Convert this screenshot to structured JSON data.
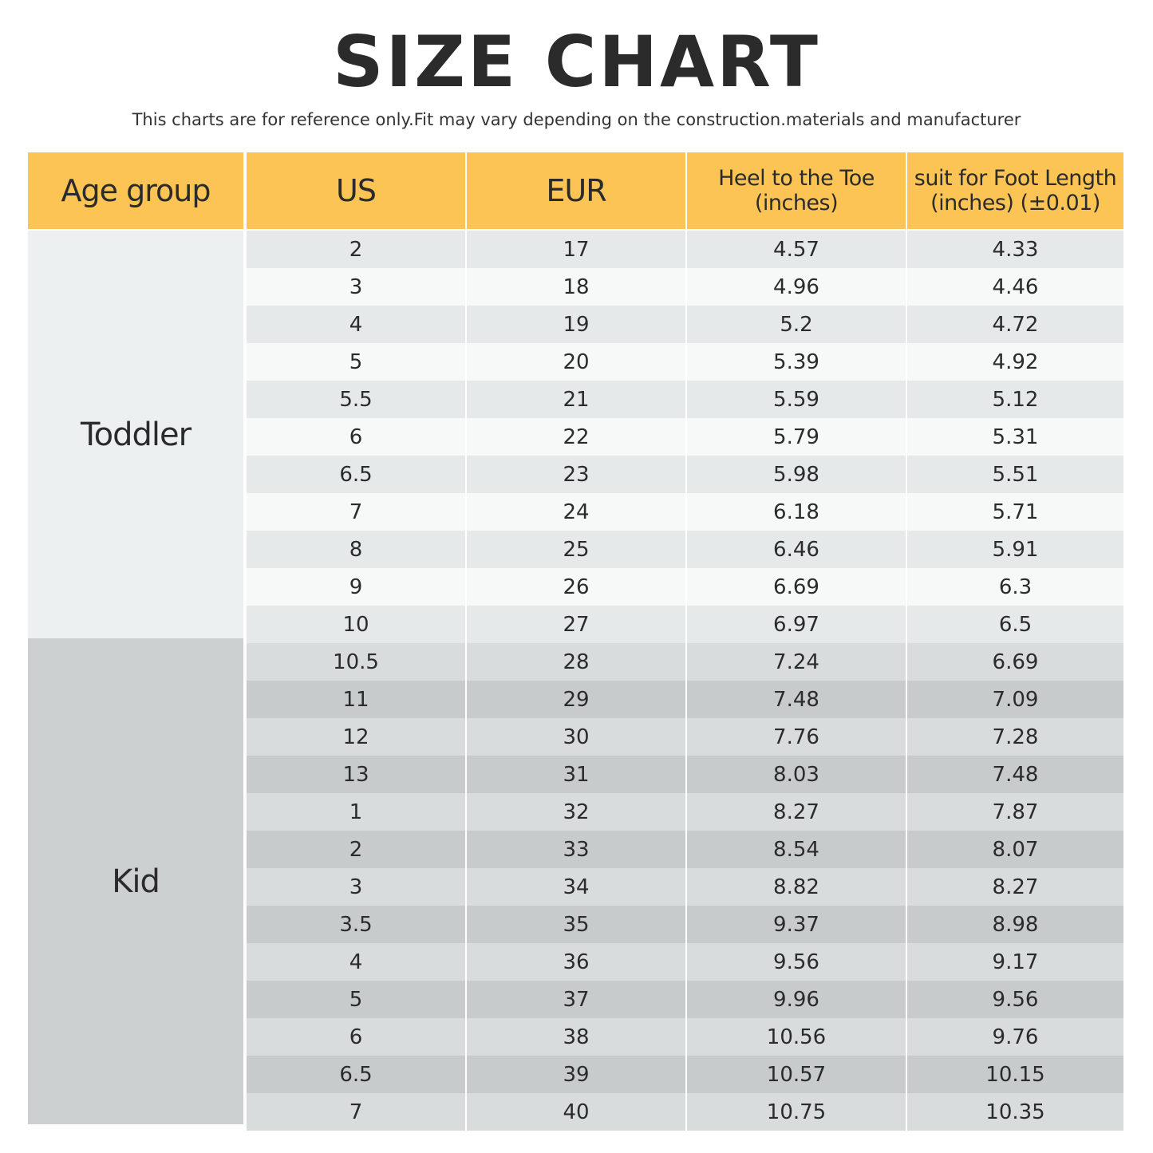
{
  "title": "SIZE CHART",
  "subtitle": "This charts are for reference only.Fit may vary depending on the construction.materials and manufacturer",
  "headers": {
    "age_group": "Age group",
    "us": "US",
    "eur": "EUR",
    "heel_line1": "Heel to the Toe",
    "heel_line2": "(inches)",
    "foot_line1": "suit for Foot Length",
    "foot_line2": "(inches) (±0.01)"
  },
  "groups": {
    "toddler": "Toddler",
    "kid": "Kid"
  },
  "colors": {
    "header": "#fcc455",
    "toddler_band": "#edf0f0",
    "kid_band": "#ccd0d1",
    "toddler_row_light": "#f7f8f8",
    "toddler_row_dark": "#e6e9e9",
    "kid_row_light": "#d9dcdd",
    "kid_row_dark": "#c7cbcc"
  },
  "rows": [
    {
      "group": "Toddler",
      "us": "2",
      "eur": "17",
      "heel": "4.57",
      "foot": "4.33"
    },
    {
      "group": "Toddler",
      "us": "3",
      "eur": "18",
      "heel": "4.96",
      "foot": "4.46"
    },
    {
      "group": "Toddler",
      "us": "4",
      "eur": "19",
      "heel": "5.2",
      "foot": "4.72"
    },
    {
      "group": "Toddler",
      "us": "5",
      "eur": "20",
      "heel": "5.39",
      "foot": "4.92"
    },
    {
      "group": "Toddler",
      "us": "5.5",
      "eur": "21",
      "heel": "5.59",
      "foot": "5.12"
    },
    {
      "group": "Toddler",
      "us": "6",
      "eur": "22",
      "heel": "5.79",
      "foot": "5.31"
    },
    {
      "group": "Toddler",
      "us": "6.5",
      "eur": "23",
      "heel": "5.98",
      "foot": "5.51"
    },
    {
      "group": "Toddler",
      "us": "7",
      "eur": "24",
      "heel": "6.18",
      "foot": "5.71"
    },
    {
      "group": "Toddler",
      "us": "8",
      "eur": "25",
      "heel": "6.46",
      "foot": "5.91"
    },
    {
      "group": "Toddler",
      "us": "9",
      "eur": "26",
      "heel": "6.69",
      "foot": "6.3"
    },
    {
      "group": "Toddler",
      "us": "10",
      "eur": "27",
      "heel": "6.97",
      "foot": "6.5"
    },
    {
      "group": "Kid",
      "us": "10.5",
      "eur": "28",
      "heel": "7.24",
      "foot": "6.69"
    },
    {
      "group": "Kid",
      "us": "11",
      "eur": "29",
      "heel": "7.48",
      "foot": "7.09"
    },
    {
      "group": "Kid",
      "us": "12",
      "eur": "30",
      "heel": "7.76",
      "foot": "7.28"
    },
    {
      "group": "Kid",
      "us": "13",
      "eur": "31",
      "heel": "8.03",
      "foot": "7.48"
    },
    {
      "group": "Kid",
      "us": "1",
      "eur": "32",
      "heel": "8.27",
      "foot": "7.87"
    },
    {
      "group": "Kid",
      "us": "2",
      "eur": "33",
      "heel": "8.54",
      "foot": "8.07"
    },
    {
      "group": "Kid",
      "us": "3",
      "eur": "34",
      "heel": "8.82",
      "foot": "8.27"
    },
    {
      "group": "Kid",
      "us": "3.5",
      "eur": "35",
      "heel": "9.37",
      "foot": "8.98"
    },
    {
      "group": "Kid",
      "us": "4",
      "eur": "36",
      "heel": "9.56",
      "foot": "9.17"
    },
    {
      "group": "Kid",
      "us": "5",
      "eur": "37",
      "heel": "9.96",
      "foot": "9.56"
    },
    {
      "group": "Kid",
      "us": "6",
      "eur": "38",
      "heel": "10.56",
      "foot": "9.76"
    },
    {
      "group": "Kid",
      "us": "6.5",
      "eur": "39",
      "heel": "10.57",
      "foot": "10.15"
    },
    {
      "group": "Kid",
      "us": "7",
      "eur": "40",
      "heel": "10.75",
      "foot": "10.35"
    }
  ]
}
